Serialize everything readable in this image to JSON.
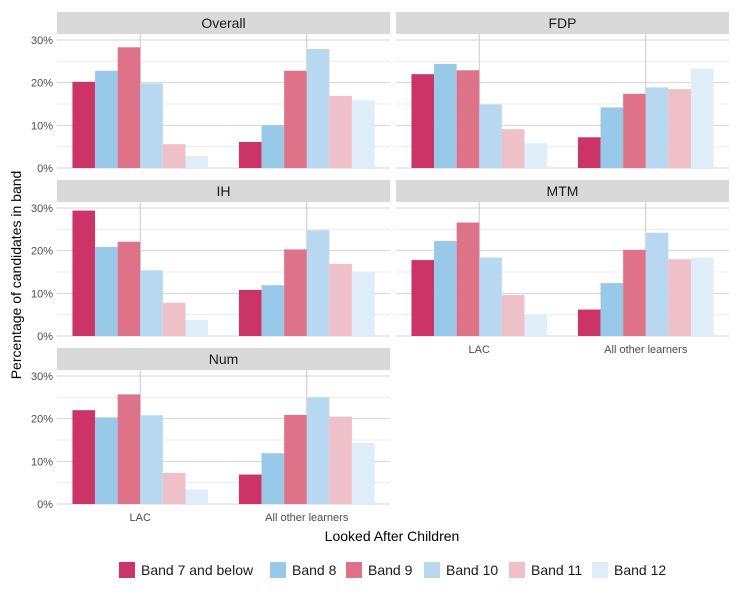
{
  "chart_data": {
    "type": "bar",
    "title": "",
    "xlabel": "Looked After Children",
    "ylabel": "Percentage of candidates in band",
    "categories": [
      "LAC",
      "All other learners"
    ],
    "ylim": [
      0,
      30
    ],
    "y_ticks": [
      "0%",
      "10%",
      "20%",
      "30%"
    ],
    "grid": true,
    "legend_position": "bottom",
    "series_names": [
      "Band 7 and below",
      "Band 8",
      "Band 9",
      "Band 10",
      "Band 11",
      "Band 12"
    ],
    "series_colors": [
      "#cc3366",
      "#99c9e8",
      "#dd7288",
      "#b7d8f0",
      "#f0c0c8",
      "#deedf8"
    ],
    "panels": [
      {
        "name": "Overall",
        "series": [
          {
            "name": "Band 7 and below",
            "values": [
              20.2,
              6.1
            ]
          },
          {
            "name": "Band 8",
            "values": [
              22.8,
              10.0
            ]
          },
          {
            "name": "Band 9",
            "values": [
              28.3,
              22.8
            ]
          },
          {
            "name": "Band 10",
            "values": [
              19.8,
              27.9
            ]
          },
          {
            "name": "Band 11",
            "values": [
              5.6,
              16.9
            ]
          },
          {
            "name": "Band 12",
            "values": [
              2.8,
              15.9
            ]
          }
        ]
      },
      {
        "name": "FDP",
        "series": [
          {
            "name": "Band 7 and below",
            "values": [
              22.0,
              7.2
            ]
          },
          {
            "name": "Band 8",
            "values": [
              24.4,
              14.2
            ]
          },
          {
            "name": "Band 9",
            "values": [
              22.9,
              17.4
            ]
          },
          {
            "name": "Band 10",
            "values": [
              14.9,
              18.9
            ]
          },
          {
            "name": "Band 11",
            "values": [
              9.1,
              18.5
            ]
          },
          {
            "name": "Band 12",
            "values": [
              5.8,
              23.3
            ]
          }
        ]
      },
      {
        "name": "IH",
        "series": [
          {
            "name": "Band 7 and below",
            "values": [
              29.4,
              10.8
            ]
          },
          {
            "name": "Band 8",
            "values": [
              20.9,
              11.9
            ]
          },
          {
            "name": "Band 9",
            "values": [
              22.1,
              20.3
            ]
          },
          {
            "name": "Band 10",
            "values": [
              15.4,
              24.8
            ]
          },
          {
            "name": "Band 11",
            "values": [
              7.8,
              16.9
            ]
          },
          {
            "name": "Band 12",
            "values": [
              3.8,
              15.0
            ]
          }
        ]
      },
      {
        "name": "MTM",
        "series": [
          {
            "name": "Band 7 and below",
            "values": [
              17.8,
              6.2
            ]
          },
          {
            "name": "Band 8",
            "values": [
              22.3,
              12.4
            ]
          },
          {
            "name": "Band 9",
            "values": [
              26.6,
              20.2
            ]
          },
          {
            "name": "Band 10",
            "values": [
              18.4,
              24.2
            ]
          },
          {
            "name": "Band 11",
            "values": [
              9.6,
              18.0
            ]
          },
          {
            "name": "Band 12",
            "values": [
              5.0,
              18.4
            ]
          }
        ]
      },
      {
        "name": "Num",
        "series": [
          {
            "name": "Band 7 and below",
            "values": [
              22.0,
              6.9
            ]
          },
          {
            "name": "Band 8",
            "values": [
              20.3,
              11.9
            ]
          },
          {
            "name": "Band 9",
            "values": [
              25.7,
              20.9
            ]
          },
          {
            "name": "Band 10",
            "values": [
              20.8,
              25.0
            ]
          },
          {
            "name": "Band 11",
            "values": [
              7.3,
              20.5
            ]
          },
          {
            "name": "Band 12",
            "values": [
              3.4,
              14.3
            ]
          }
        ]
      }
    ]
  }
}
